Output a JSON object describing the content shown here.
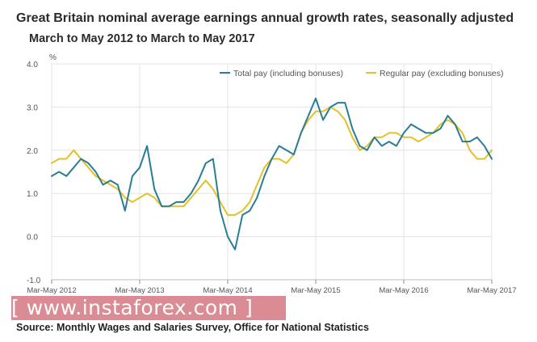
{
  "title": "Great Britain nominal average earnings annual  growth rates, seasonally adjusted",
  "subtitle": "March to May 2012 to March to May 2017",
  "source": "Source: Monthly Wages and Salaries Survey, Office for National Statistics",
  "watermark": "[ www.instaforex.com ]",
  "chart_data": {
    "type": "line",
    "ylabel": "%",
    "ylim": [
      -1.0,
      4.0
    ],
    "yticks": [
      "4.0",
      "3.0",
      "2.0",
      "1.0",
      "0.0",
      "-1.0"
    ],
    "ytick_values": [
      4.0,
      3.0,
      2.0,
      1.0,
      0.0,
      -1.0
    ],
    "xtick_labels": [
      "Mar-May 2012",
      "Mar-May 2013",
      "Mar-May 2014",
      "Mar-May 2015",
      "Mar-May 2016",
      "Mar-May 2017"
    ],
    "xtick_index": [
      0,
      12,
      24,
      36,
      48,
      60
    ],
    "grid": true,
    "legend_position": "top-right",
    "series": [
      {
        "name": "Total pay (including bonuses)",
        "color": "#2a7d95",
        "values": [
          1.4,
          1.5,
          1.4,
          1.6,
          1.8,
          1.7,
          1.5,
          1.2,
          1.3,
          1.2,
          0.6,
          1.4,
          1.6,
          2.1,
          1.1,
          0.7,
          0.7,
          0.8,
          0.8,
          1.0,
          1.3,
          1.7,
          1.8,
          0.6,
          0.0,
          -0.3,
          0.5,
          0.6,
          0.9,
          1.4,
          1.8,
          2.1,
          2.0,
          1.9,
          2.4,
          2.8,
          3.2,
          2.7,
          3.0,
          3.1,
          3.1,
          2.5,
          2.1,
          2.0,
          2.3,
          2.1,
          2.2,
          2.1,
          2.4,
          2.6,
          2.5,
          2.4,
          2.4,
          2.5,
          2.8,
          2.6,
          2.2,
          2.2,
          2.3,
          2.1,
          1.8
        ]
      },
      {
        "name": "Regular pay (excluding bonuses)",
        "color": "#e3c12a",
        "values": [
          1.7,
          1.8,
          1.8,
          2.0,
          1.8,
          1.6,
          1.4,
          1.3,
          1.2,
          1.1,
          0.9,
          0.8,
          0.9,
          1.0,
          0.9,
          0.7,
          0.7,
          0.7,
          0.7,
          0.9,
          1.1,
          1.3,
          1.1,
          0.8,
          0.5,
          0.5,
          0.6,
          0.8,
          1.2,
          1.6,
          1.8,
          1.8,
          1.7,
          1.9,
          2.4,
          2.7,
          2.9,
          2.9,
          3.0,
          2.9,
          2.7,
          2.3,
          2.0,
          2.1,
          2.3,
          2.3,
          2.4,
          2.4,
          2.3,
          2.3,
          2.2,
          2.3,
          2.4,
          2.6,
          2.7,
          2.6,
          2.4,
          2.0,
          1.8,
          1.8,
          2.0
        ]
      }
    ]
  }
}
